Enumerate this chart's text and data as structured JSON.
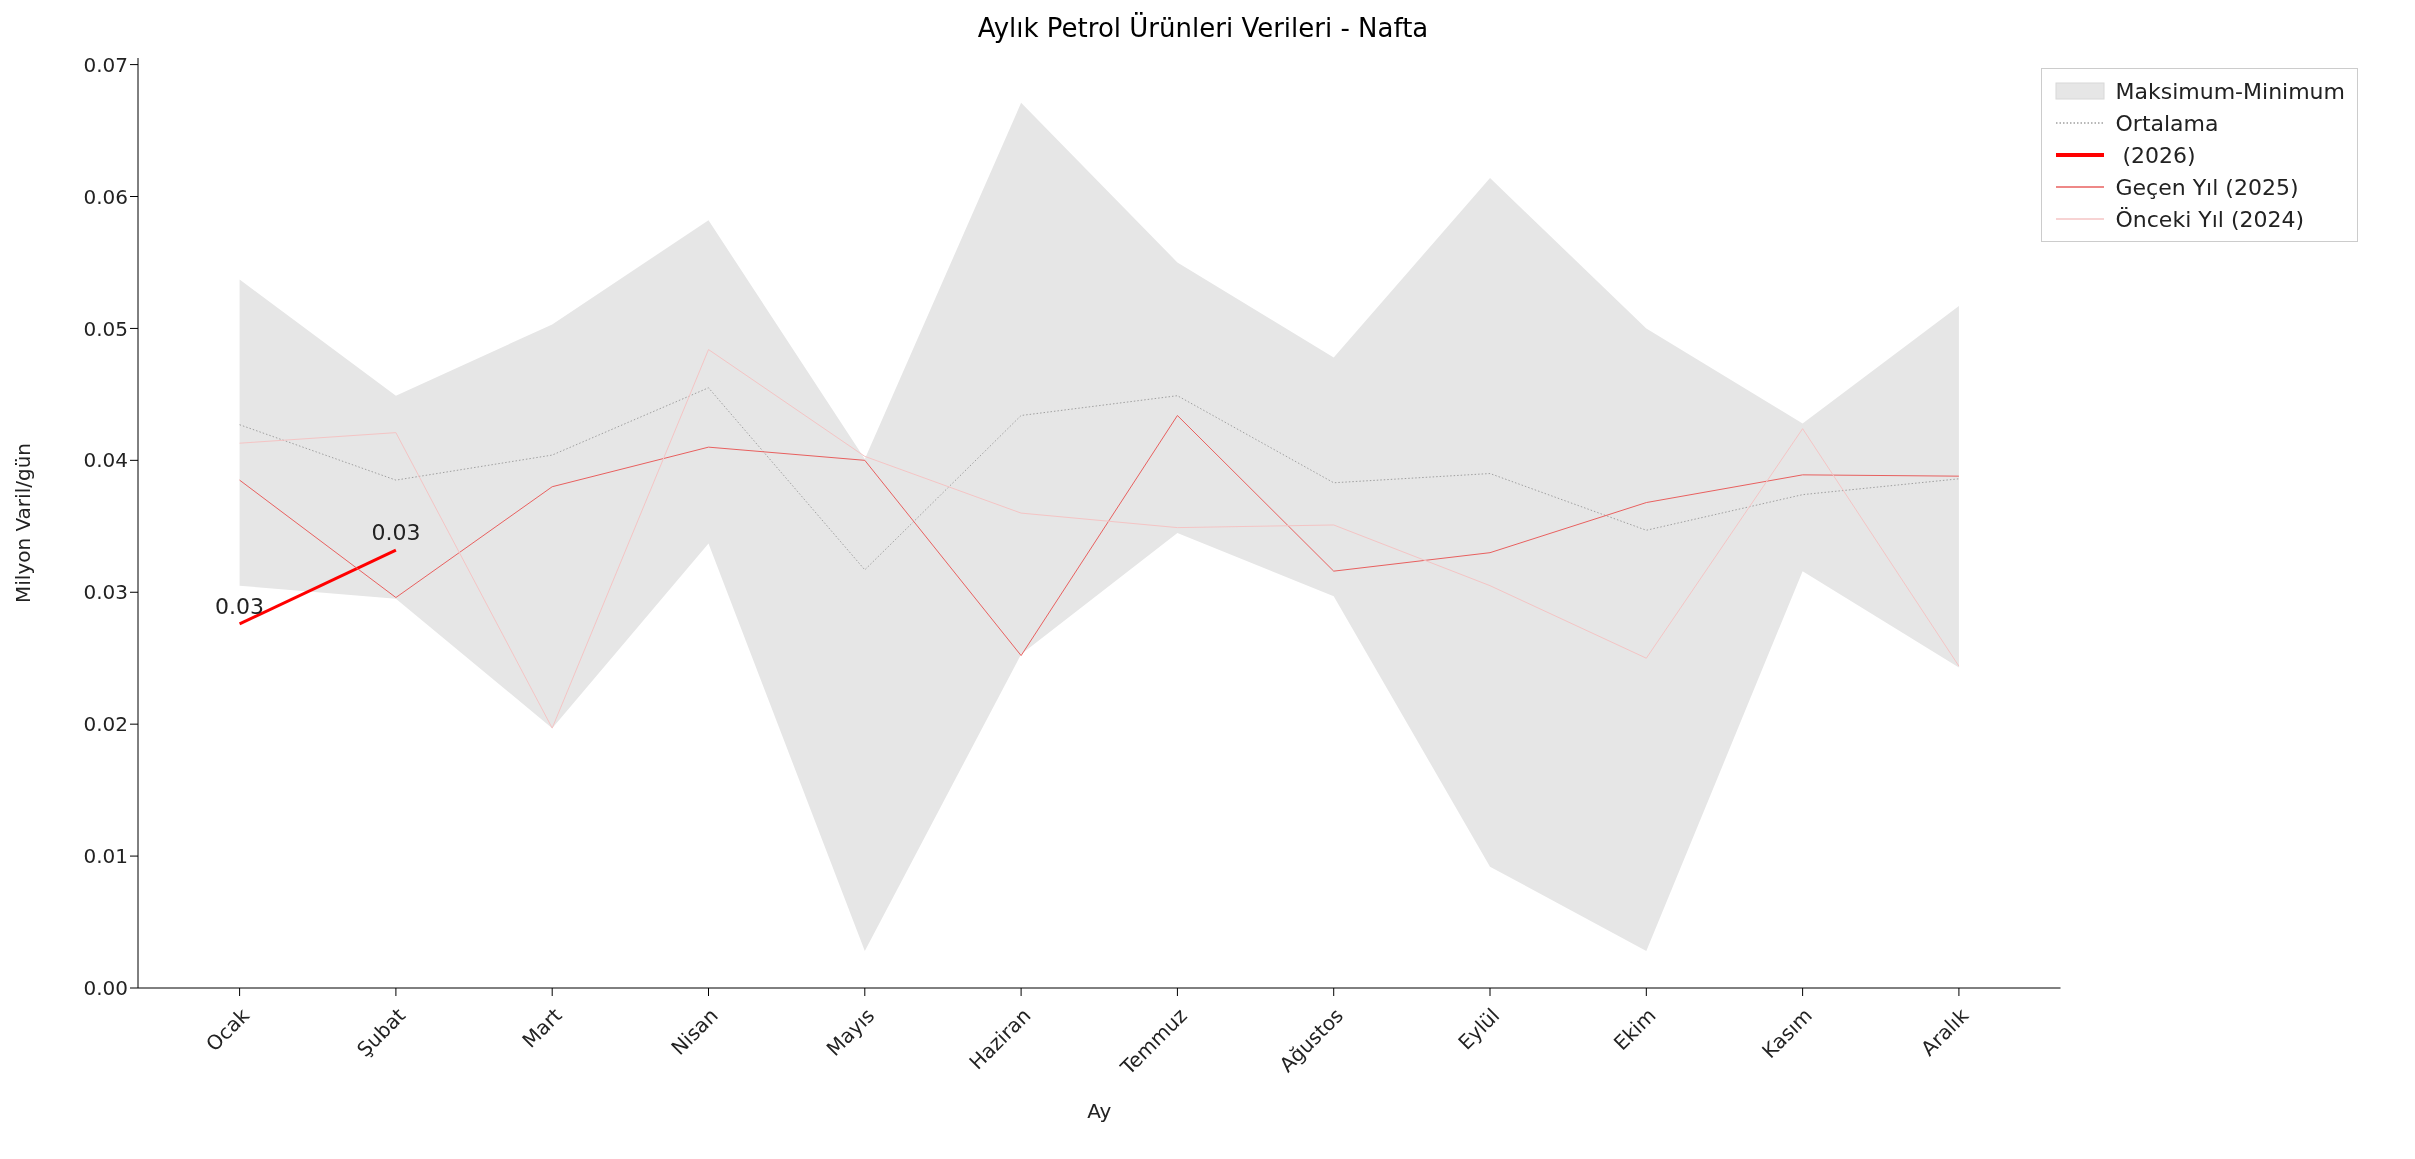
{
  "chart_data": {
    "type": "line",
    "title": "Aylık Petrol Ürünleri Verileri - Nafta",
    "xlabel": "Ay",
    "ylabel": "Milyon Varil/gün",
    "categories": [
      "Ocak",
      "Şubat",
      "Mart",
      "Nisan",
      "Mayıs",
      "Haziran",
      "Temmuz",
      "Ağustos",
      "Eylül",
      "Ekim",
      "Kasım",
      "Aralık"
    ],
    "ylim": [
      0,
      0.0705
    ],
    "yticks": [
      {
        "value": 0,
        "label": "0.00"
      },
      {
        "value": 0.01,
        "label": "0.01"
      },
      {
        "value": 0.02,
        "label": "0.02"
      },
      {
        "value": 0.03,
        "label": "0.03"
      },
      {
        "value": 0.04,
        "label": "0.04"
      },
      {
        "value": 0.05,
        "label": "0.05"
      },
      {
        "value": 0.06,
        "label": "0.06"
      },
      {
        "value": 0.07,
        "label": "0.07"
      }
    ],
    "grid": false,
    "legend": "top right",
    "marker": "none",
    "annotations": [
      "Maksimum-Minimum"
    ],
    "series": [
      {
        "name": "Ortalama",
        "color": "#a0a0a0",
        "line_style": "dotted",
        "values": [
          0.0427,
          0.0385,
          0.0404,
          0.0455,
          0.0317,
          0.0434,
          0.0449,
          0.0383,
          0.039,
          0.0347,
          0.0374,
          0.0386
        ],
        "lower": [
          0.0305,
          0.0295,
          0.0197,
          0.0337,
          0.0028,
          0.0253,
          0.0345,
          0.0297,
          0.0092,
          0.0028,
          0.0316,
          0.0243
        ],
        "upper": [
          0.0537,
          0.0449,
          0.0503,
          0.0582,
          0.0401,
          0.0671,
          0.055,
          0.0478,
          0.0614,
          0.05,
          0.0428,
          0.0517
        ]
      },
      {
        "name": " (2026)",
        "color": "#ff0000",
        "values": [
          0.0276,
          0.0332,
          null,
          null,
          null,
          null,
          null,
          null,
          null,
          null,
          null,
          null
        ],
        "value_labels": [
          "0.03",
          "0.03",
          null,
          null,
          null,
          null,
          null,
          null,
          null,
          null,
          null,
          null
        ]
      },
      {
        "name": "Geçen Yıl (2025)",
        "color": "#e8605f",
        "values": [
          0.0385,
          0.0296,
          0.038,
          0.041,
          0.04,
          0.0252,
          0.0434,
          0.0316,
          0.033,
          0.0368,
          0.0389,
          0.0388
        ]
      },
      {
        "name": "Önceki Yıl (2024)",
        "color": "#f4c4c4",
        "values": [
          0.0413,
          0.0421,
          0.0197,
          0.0484,
          0.0403,
          0.036,
          0.0349,
          0.0351,
          0.0305,
          0.025,
          0.0424,
          0.0244
        ]
      }
    ]
  }
}
